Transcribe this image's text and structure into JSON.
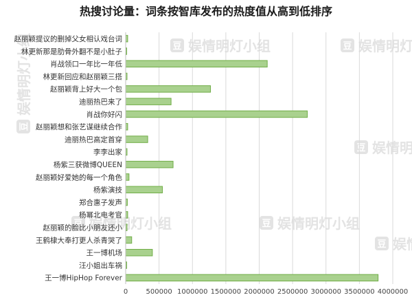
{
  "chart_data": {
    "type": "bar",
    "orientation": "horizontal",
    "title": "热搜讨论量：词条按智库发布的热度值从高到低排序",
    "xlabel": "",
    "ylabel": "",
    "xlim": [
      0,
      4000000
    ],
    "grid": true,
    "legend": "none",
    "x_ticks": [
      "0",
      "500000",
      "1000000",
      "1500000",
      "2000000",
      "2500000",
      "3000000",
      "3500000",
      "4000000"
    ],
    "categories": [
      "赵丽颖提议的删掉父女相认戏台词",
      "林更新那是肋骨外翻不是小肚子",
      "肖战领口一年比一年低",
      "林更新回应和赵丽颖三搭",
      "赵丽颖背上好大一个包",
      "迪丽热巴来了",
      "肖战你好闪",
      "赵丽颖想和张艺谋继续合作",
      "迪丽热巴高定首穿",
      "李李出家",
      "杨紫三获微博QUEEN",
      "赵丽颖好爱她的每一个角色",
      "杨紫演技",
      "郑合惠子发声",
      "杨幂北电考官",
      "赵丽颖的脸比小朋友还小",
      "王鹤棣大奉打更人杀青哭了",
      "王一博机场",
      "汪小姐出车祸",
      "王一博HipHop Forever"
    ],
    "values": [
      30000,
      15000,
      2120000,
      20000,
      1270000,
      680000,
      2720000,
      30000,
      330000,
      20000,
      710000,
      50000,
      550000,
      25000,
      30000,
      20000,
      90000,
      400000,
      15000,
      3780000
    ],
    "colors": {
      "bar_fill": "#a9d18e",
      "bar_edge": "#70ad47"
    }
  },
  "watermark": {
    "text": "娱情明灯小组",
    "badge_icon": "shield-icon",
    "badge_glyph": "豆"
  }
}
